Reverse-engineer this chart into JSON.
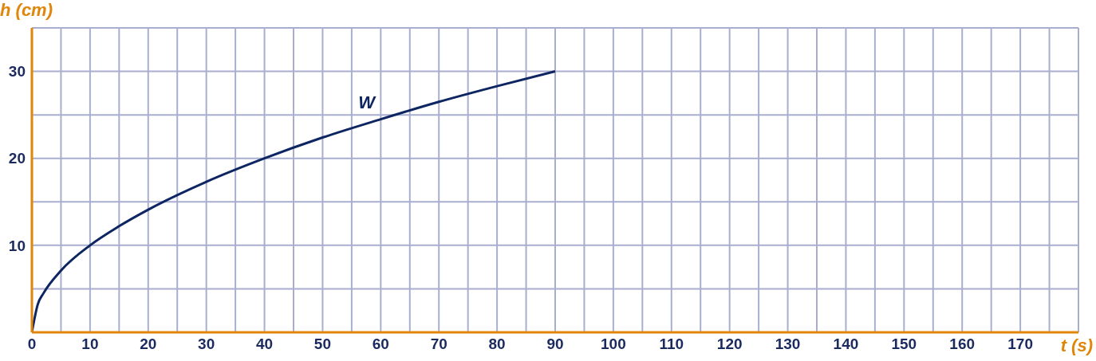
{
  "chart_data": {
    "type": "line",
    "xlabel": "t (s)",
    "ylabel": "h (cm)",
    "x": [
      0,
      1,
      2,
      5,
      10,
      15,
      20,
      30,
      40,
      50,
      60,
      70,
      80,
      90
    ],
    "series": [
      {
        "name": "W",
        "color": "#0d2561",
        "values": [
          0,
          3.2,
          4.5,
          7.1,
          10,
          12.2,
          14.1,
          17.3,
          20,
          22.4,
          24.5,
          26.5,
          28.3,
          30
        ]
      }
    ],
    "xlim": [
      0,
      180
    ],
    "xticks": [
      0,
      {
        "value": 5,
        "label": null
      },
      10,
      {
        "value": 15,
        "label": null
      },
      20,
      {
        "value": 25,
        "label": null
      },
      30,
      {
        "value": 35,
        "label": null
      },
      40,
      {
        "value": 45,
        "label": null
      },
      50,
      {
        "value": 55,
        "label": null
      },
      60,
      {
        "value": 65,
        "label": null
      },
      70,
      {
        "value": 75,
        "label": null
      },
      80,
      {
        "value": 85,
        "label": null
      },
      90,
      {
        "value": 95,
        "label": null
      },
      100,
      {
        "value": 105,
        "label": null
      },
      110,
      {
        "value": 115,
        "label": null
      },
      120,
      {
        "value": 125,
        "label": null
      },
      130,
      {
        "value": 135,
        "label": null
      },
      140,
      {
        "value": 145,
        "label": null
      },
      150,
      {
        "value": 155,
        "label": null
      },
      160,
      {
        "value": 165,
        "label": null
      },
      170,
      {
        "value": 175,
        "label": null
      },
      {
        "value": 180,
        "label": null
      }
    ],
    "ylim": [
      0,
      35
    ],
    "yticks": [
      {
        "value": 5,
        "label": null
      },
      10,
      {
        "value": 15,
        "label": null
      },
      20,
      {
        "value": 25,
        "label": null
      },
      30,
      {
        "value": 35,
        "label": null
      }
    ],
    "grid": true,
    "legend": false,
    "marker": "none",
    "line_style": "solid"
  }
}
